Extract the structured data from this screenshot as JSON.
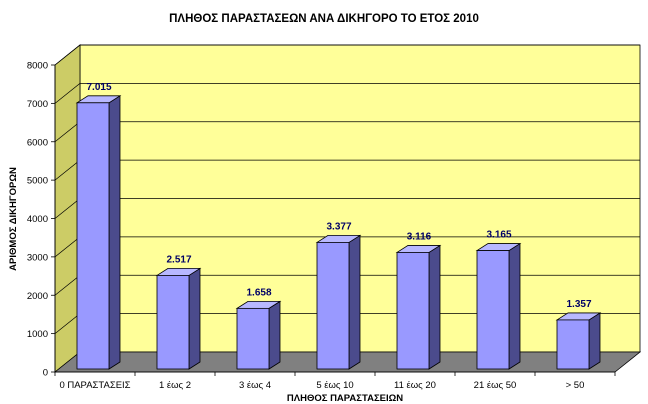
{
  "chart_data": {
    "type": "bar",
    "title": "ΠΛΗΘΟΣ ΠΑΡΑΣΤΑΣΕΩΝ  ΑΝΑ ΔΙΚΗΓΟΡΟ ΤΟ ΕΤΟΣ 2010",
    "xlabel": "ΠΛΗΘΟΣ ΠΑΡΑΣΤΑΣΕΙΩΝ",
    "ylabel": "ΑΡΙΘΜΟΣ ΔΙΚΗΓΟΡΩΝ",
    "categories": [
      "0 ΠΑΡΑΣΤΑΣΕΙΣ",
      "1 έως 2",
      "3 έως 4",
      "5 έως 10",
      "11 έως 20",
      "21 έως 50",
      "> 50"
    ],
    "values": [
      7015,
      2517,
      1658,
      3377,
      3116,
      3165,
      1357
    ],
    "value_labels": [
      "7.015",
      "2.517",
      "1.658",
      "3.377",
      "3.116",
      "3.165",
      "1.357"
    ],
    "ylim": [
      0,
      8000
    ],
    "yticks": [
      0,
      1000,
      2000,
      3000,
      4000,
      5000,
      6000,
      7000,
      8000
    ],
    "grid": true,
    "legend": "none",
    "colors": {
      "bar_front": "#9999ff",
      "bar_side": "#4b4b8c",
      "bar_top": "#b8b8ff",
      "back_wall": "#ffff99",
      "side_wall": "#cccc66",
      "floor": "#808080",
      "label": "#000066"
    }
  }
}
